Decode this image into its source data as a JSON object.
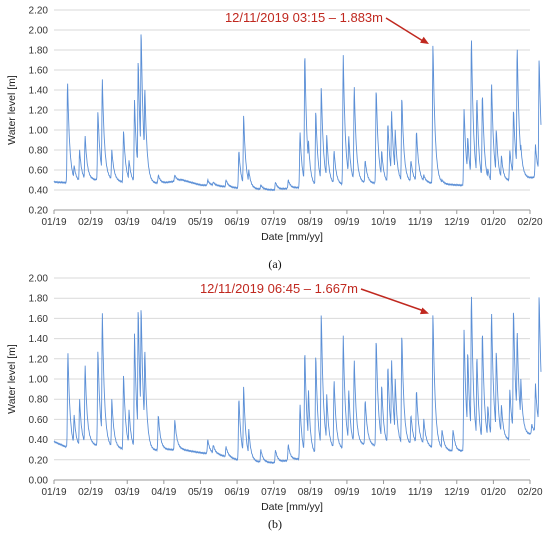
{
  "chart_data": [
    {
      "type": "line",
      "xlabel": "Date [mm/yy]",
      "ylabel": "Water level [m]",
      "ylim": [
        0.2,
        2.2
      ],
      "yticks": [
        "0.20",
        "0.40",
        "0.60",
        "0.80",
        "1.00",
        "1.20",
        "1.40",
        "1.60",
        "1.80",
        "2.00",
        "2.20"
      ],
      "xticks": [
        "01/19",
        "02/19",
        "03/19",
        "04/19",
        "05/19",
        "06/19",
        "07/19",
        "08/19",
        "09/19",
        "10/19",
        "11/19",
        "12/19",
        "01/20",
        "02/20"
      ],
      "grid": "horizontal",
      "annotation": "12/11/2019 03:15 – 1.883m",
      "annotation_color": "#c0281f",
      "line_color": "#5b8fd6",
      "baseline": [
        [
          0,
          0.48
        ],
        [
          0.5,
          0.47
        ],
        [
          1,
          0.5
        ],
        [
          1.5,
          0.5
        ],
        [
          2,
          0.47
        ],
        [
          2.5,
          0.46
        ],
        [
          3,
          0.47
        ],
        [
          3.5,
          0.5
        ],
        [
          4,
          0.45
        ],
        [
          4.5,
          0.44
        ],
        [
          5,
          0.42
        ],
        [
          5.5,
          0.41
        ],
        [
          6,
          0.4
        ],
        [
          6.5,
          0.42
        ],
        [
          7,
          0.43
        ],
        [
          7.5,
          0.45
        ],
        [
          8,
          0.45
        ],
        [
          8.5,
          0.47
        ],
        [
          9,
          0.46
        ],
        [
          9.5,
          0.47
        ],
        [
          10,
          0.48
        ],
        [
          10.5,
          0.46
        ],
        [
          11,
          0.45
        ],
        [
          11.5,
          0.44
        ],
        [
          12,
          0.45
        ],
        [
          12.5,
          0.5
        ],
        [
          13,
          0.52
        ],
        [
          13.5,
          0.55
        ]
      ],
      "peaks": [
        [
          0.37,
          1.5
        ],
        [
          0.55,
          0.65
        ],
        [
          0.7,
          0.8
        ],
        [
          0.85,
          0.95
        ],
        [
          1.2,
          1.2
        ],
        [
          1.32,
          1.52
        ],
        [
          1.58,
          0.8
        ],
        [
          1.9,
          1.0
        ],
        [
          2.05,
          0.7
        ],
        [
          2.2,
          1.3
        ],
        [
          2.3,
          1.72
        ],
        [
          2.38,
          2.03
        ],
        [
          2.48,
          1.45
        ],
        [
          2.85,
          0.55
        ],
        [
          3.3,
          0.55
        ],
        [
          4.2,
          0.5
        ],
        [
          4.35,
          0.48
        ],
        [
          4.7,
          0.5
        ],
        [
          5.05,
          0.8
        ],
        [
          5.18,
          1.15
        ],
        [
          5.32,
          0.6
        ],
        [
          5.65,
          0.45
        ],
        [
          6.05,
          0.48
        ],
        [
          6.4,
          0.5
        ],
        [
          6.72,
          0.98
        ],
        [
          6.85,
          1.8
        ],
        [
          6.95,
          0.9
        ],
        [
          7.15,
          1.2
        ],
        [
          7.3,
          1.45
        ],
        [
          7.45,
          0.95
        ],
        [
          7.65,
          0.8
        ],
        [
          7.9,
          1.75
        ],
        [
          8.05,
          0.95
        ],
        [
          8.2,
          1.45
        ],
        [
          8.5,
          0.7
        ],
        [
          8.8,
          1.43
        ],
        [
          8.95,
          0.8
        ],
        [
          9.12,
          1.08
        ],
        [
          9.22,
          1.2
        ],
        [
          9.32,
          1.0
        ],
        [
          9.5,
          1.35
        ],
        [
          9.75,
          0.7
        ],
        [
          9.9,
          1.0
        ],
        [
          10.1,
          0.55
        ],
        [
          10.35,
          1.88
        ],
        [
          10.6,
          0.5
        ],
        [
          10.9,
          0.45
        ],
        [
          11.2,
          1.22
        ],
        [
          11.3,
          0.95
        ],
        [
          11.4,
          1.96
        ],
        [
          11.55,
          1.35
        ],
        [
          11.7,
          1.38
        ],
        [
          11.85,
          0.62
        ],
        [
          11.95,
          1.5
        ],
        [
          12.08,
          1.02
        ],
        [
          12.22,
          0.75
        ],
        [
          12.45,
          0.8
        ],
        [
          12.55,
          1.22
        ],
        [
          12.65,
          1.86
        ],
        [
          12.75,
          0.85
        ],
        [
          13.05,
          0.52
        ],
        [
          13.15,
          0.85
        ],
        [
          13.25,
          1.73
        ]
      ]
    },
    {
      "type": "line",
      "xlabel": "Date [mm/yy]",
      "ylabel": "Water level [m]",
      "ylim": [
        0.0,
        2.0
      ],
      "yticks": [
        "0.00",
        "0.20",
        "0.40",
        "0.60",
        "0.80",
        "1.00",
        "1.20",
        "1.40",
        "1.60",
        "1.80",
        "2.00"
      ],
      "xticks": [
        "01/19",
        "02/19",
        "03/19",
        "04/19",
        "05/19",
        "06/19",
        "07/19",
        "08/19",
        "09/19",
        "10/19",
        "11/19",
        "12/19",
        "01/20",
        "02/20"
      ],
      "grid": "horizontal",
      "annotation": "12/11/2019 06:45 – 1.667m",
      "annotation_color": "#c0281f",
      "line_color": "#5b8fd6",
      "baseline": [
        [
          0,
          0.38
        ],
        [
          0.5,
          0.3
        ],
        [
          1,
          0.35
        ],
        [
          1.5,
          0.32
        ],
        [
          2,
          0.3
        ],
        [
          2.5,
          0.28
        ],
        [
          3,
          0.3
        ],
        [
          3.5,
          0.3
        ],
        [
          4,
          0.27
        ],
        [
          4.5,
          0.25
        ],
        [
          5,
          0.2
        ],
        [
          5.5,
          0.18
        ],
        [
          6,
          0.17
        ],
        [
          6.5,
          0.2
        ],
        [
          7,
          0.22
        ],
        [
          7.5,
          0.3
        ],
        [
          8,
          0.3
        ],
        [
          8.5,
          0.35
        ],
        [
          9,
          0.32
        ],
        [
          9.5,
          0.33
        ],
        [
          10,
          0.35
        ],
        [
          10.5,
          0.3
        ],
        [
          11,
          0.28
        ],
        [
          11.5,
          0.3
        ],
        [
          12,
          0.35
        ],
        [
          12.5,
          0.4
        ],
        [
          13,
          0.45
        ],
        [
          13.5,
          0.5
        ]
      ],
      "peaks": [
        [
          0.38,
          1.28
        ],
        [
          0.55,
          0.65
        ],
        [
          0.7,
          0.8
        ],
        [
          0.85,
          1.15
        ],
        [
          1.2,
          1.3
        ],
        [
          1.32,
          1.67
        ],
        [
          1.58,
          0.8
        ],
        [
          1.9,
          1.05
        ],
        [
          2.05,
          0.7
        ],
        [
          2.2,
          1.45
        ],
        [
          2.3,
          1.72
        ],
        [
          2.38,
          1.75
        ],
        [
          2.48,
          1.32
        ],
        [
          2.85,
          0.65
        ],
        [
          3.3,
          0.6
        ],
        [
          4.2,
          0.4
        ],
        [
          4.35,
          0.35
        ],
        [
          4.7,
          0.33
        ],
        [
          5.05,
          0.82
        ],
        [
          5.18,
          0.93
        ],
        [
          5.32,
          0.5
        ],
        [
          5.65,
          0.3
        ],
        [
          6.05,
          0.3
        ],
        [
          6.4,
          0.35
        ],
        [
          6.72,
          0.75
        ],
        [
          6.85,
          1.3
        ],
        [
          6.95,
          0.9
        ],
        [
          7.15,
          1.25
        ],
        [
          7.3,
          1.67
        ],
        [
          7.45,
          0.85
        ],
        [
          7.65,
          1.0
        ],
        [
          7.9,
          1.43
        ],
        [
          8.05,
          0.9
        ],
        [
          8.2,
          1.2
        ],
        [
          8.5,
          0.8
        ],
        [
          8.8,
          1.42
        ],
        [
          8.95,
          0.95
        ],
        [
          9.12,
          1.15
        ],
        [
          9.22,
          1.2
        ],
        [
          9.32,
          1.0
        ],
        [
          9.5,
          1.47
        ],
        [
          9.75,
          0.65
        ],
        [
          9.9,
          0.9
        ],
        [
          10.1,
          0.6
        ],
        [
          10.35,
          1.667
        ],
        [
          10.6,
          0.5
        ],
        [
          10.9,
          0.5
        ],
        [
          11.2,
          1.5
        ],
        [
          11.3,
          1.3
        ],
        [
          11.4,
          1.88
        ],
        [
          11.55,
          1.25
        ],
        [
          11.7,
          1.5
        ],
        [
          11.85,
          0.75
        ],
        [
          11.95,
          1.7
        ],
        [
          12.08,
          1.3
        ],
        [
          12.22,
          0.75
        ],
        [
          12.45,
          0.9
        ],
        [
          12.55,
          1.72
        ],
        [
          12.65,
          1.5
        ],
        [
          12.75,
          1.0
        ],
        [
          13.05,
          0.55
        ],
        [
          13.15,
          0.95
        ],
        [
          13.25,
          1.85
        ]
      ]
    }
  ],
  "captions": {
    "a": "(a)",
    "b": "(b)"
  }
}
